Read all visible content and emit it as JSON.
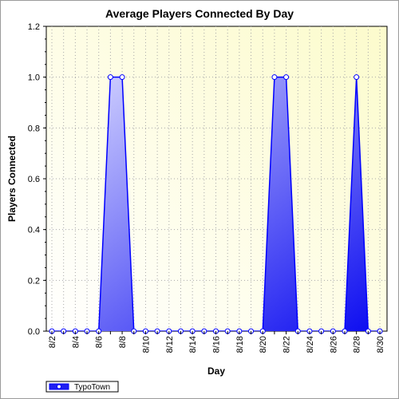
{
  "chart_data": {
    "type": "area",
    "title": "Average Players Connected By Day",
    "xlabel": "Day",
    "ylabel": "Players Connected",
    "ylim": [
      0,
      1.2
    ],
    "yticks": [
      "0.0",
      "0.2",
      "0.4",
      "0.6",
      "0.8",
      "1.0",
      "1.2"
    ],
    "x": [
      "8/2",
      "8/3",
      "8/4",
      "8/5",
      "8/6",
      "8/7",
      "8/8",
      "8/9",
      "8/10",
      "8/11",
      "8/12",
      "8/13",
      "8/14",
      "8/15",
      "8/16",
      "8/17",
      "8/18",
      "8/19",
      "8/20",
      "8/21",
      "8/22",
      "8/23",
      "8/24",
      "8/25",
      "8/26",
      "8/27",
      "8/28",
      "8/29",
      "8/30"
    ],
    "xtick_labels": [
      "8/2",
      "8/4",
      "8/6",
      "8/8",
      "8/10",
      "8/12",
      "8/14",
      "8/16",
      "8/18",
      "8/20",
      "8/22",
      "8/24",
      "8/26",
      "8/28",
      "8/30"
    ],
    "series": [
      {
        "name": "TypoTown",
        "values": [
          0,
          0,
          0,
          0,
          0,
          1,
          1,
          0,
          0,
          0,
          0,
          0,
          0,
          0,
          0,
          0,
          0,
          0,
          0,
          1,
          1,
          0,
          0,
          0,
          0,
          0,
          1,
          0,
          0
        ]
      }
    ],
    "grid": true,
    "legend_position": "bottom-left",
    "colors": {
      "series_line": "#0000ff",
      "fill_light": "#d4d4ff",
      "fill_dark": "#1010f0",
      "plot_bg_light": "#ffffff",
      "plot_bg_warm": "#fdfcd2",
      "grid": "#a0a0a0"
    }
  }
}
